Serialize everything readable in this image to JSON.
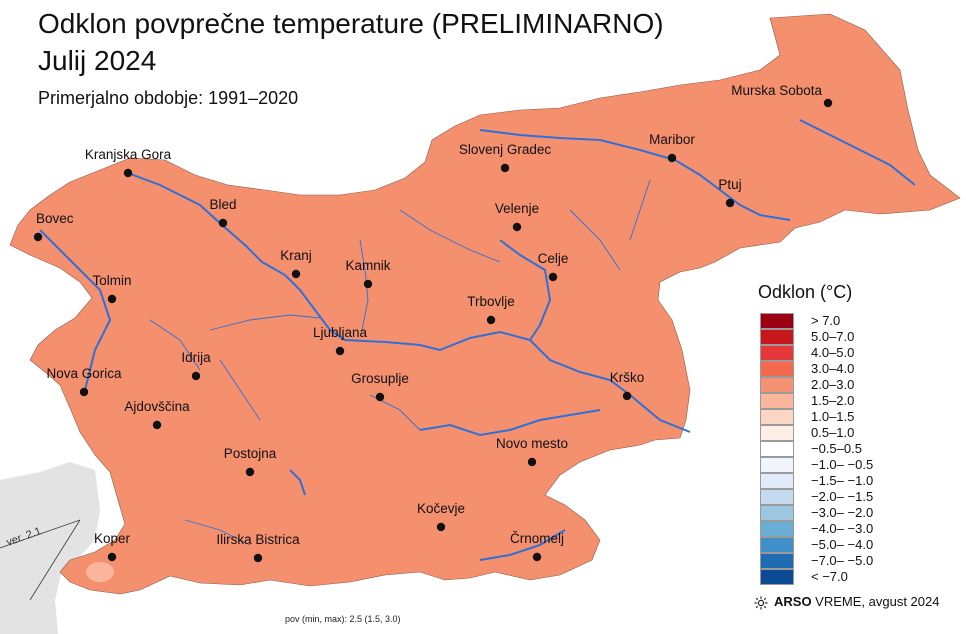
{
  "title_line1": "Odklon povprečne temperature (PRELIMINARNO)",
  "title_line2": "Julij 2024",
  "subtitle": "Primerjalno obdobje: 1991–2020",
  "version": "ver. 2.1",
  "legend": {
    "title": "Odklon (°C)",
    "items": [
      {
        "label": "> 7.0",
        "color": "#9b0012"
      },
      {
        "label": "5.0–7.0",
        "color": "#c8161d"
      },
      {
        "label": "4.0–5.0",
        "color": "#e6383a"
      },
      {
        "label": "3.0–4.0",
        "color": "#f4684c"
      },
      {
        "label": "2.0–3.0",
        "color": "#f69274"
      },
      {
        "label": "1.5–2.0",
        "color": "#f9b69c"
      },
      {
        "label": "1.0–1.5",
        "color": "#fcd6c4"
      },
      {
        "label": "0.5–1.0",
        "color": "#fdeee6"
      },
      {
        "label": "−0.5–0.5",
        "color": "#ffffff"
      },
      {
        "label": "−1.0– −0.5",
        "color": "#f1f6fc"
      },
      {
        "label": "−1.5– −1.0",
        "color": "#e0ebf7"
      },
      {
        "label": "−2.0– −1.5",
        "color": "#c5daee"
      },
      {
        "label": "−3.0– −2.0",
        "color": "#9dc6e2"
      },
      {
        "label": "−4.0– −3.0",
        "color": "#6aaed6"
      },
      {
        "label": "−5.0– −4.0",
        "color": "#3f8fc8"
      },
      {
        "label": "−7.0– −5.0",
        "color": "#1f6cb2"
      },
      {
        "label": "< −7.0",
        "color": "#0b4a94"
      }
    ]
  },
  "credit": {
    "brand": "ARSO",
    "rest": " VREME",
    "date": ", avgust 2024",
    "icon": "sun-icon"
  },
  "stats": "pov (min, max): 2.5 (1.5, 3.0)",
  "colors": {
    "land": "#f5906f",
    "neighbor": "#e3e3e3",
    "river": "#2f6fd6",
    "border": "#8a5a4a",
    "coast_patch": "#f9b69c"
  },
  "cities": [
    {
      "name": "Murska Sobota"
    },
    {
      "name": "Maribor"
    },
    {
      "name": "Slovenj Gradec"
    },
    {
      "name": "Ptuj"
    },
    {
      "name": "Kranjska Gora"
    },
    {
      "name": "Bled"
    },
    {
      "name": "Velenje"
    },
    {
      "name": "Bovec"
    },
    {
      "name": "Kranj"
    },
    {
      "name": "Celje"
    },
    {
      "name": "Kamnik"
    },
    {
      "name": "Tolmin"
    },
    {
      "name": "Trbovlje"
    },
    {
      "name": "Ljubljana"
    },
    {
      "name": "Idrija"
    },
    {
      "name": "Nova Gorica"
    },
    {
      "name": "Grosuplje"
    },
    {
      "name": "Krško"
    },
    {
      "name": "Ajdovščina"
    },
    {
      "name": "Novo mesto"
    },
    {
      "name": "Postojna"
    },
    {
      "name": "Kočevje"
    },
    {
      "name": "Koper"
    },
    {
      "name": "Ilirska Bistrica"
    },
    {
      "name": "Črnomelj"
    }
  ]
}
